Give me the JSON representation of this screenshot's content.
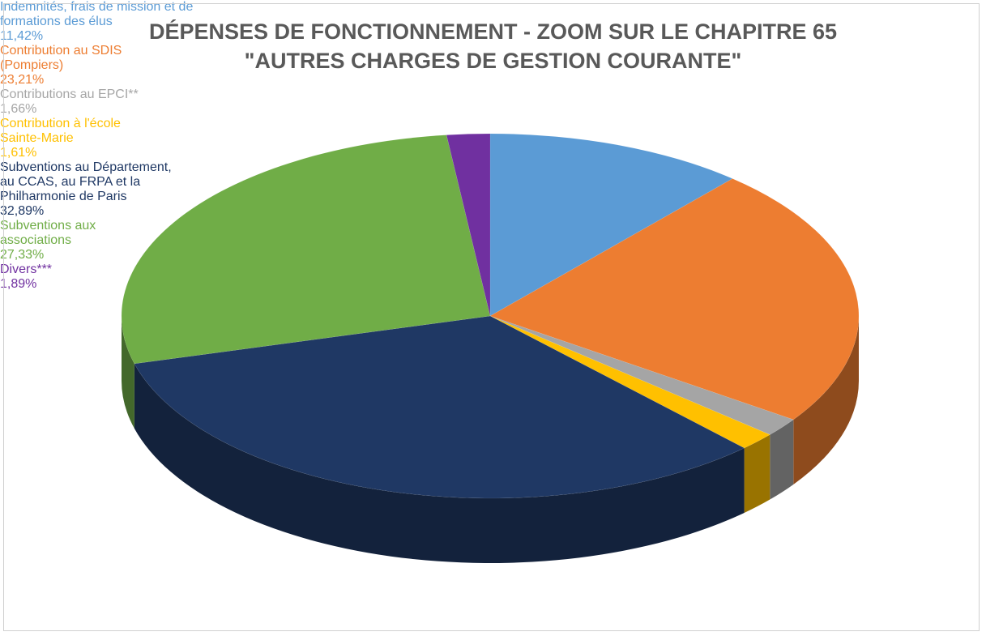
{
  "chart_data": {
    "type": "pie",
    "title": "DÉPENSES DE FONCTIONNEMENT - ZOOM SUR LE CHAPITRE 65",
    "subtitle": "\"AUTRES CHARGES DE GESTION COURANTE\"",
    "categories": [
      "Indemnités, frais de mission et de formations des élus",
      "Contribution au SDIS (Pompiers)",
      "Contributions au EPCI**",
      "Contribution à l'école Sainte-Marie",
      "Subventions au Département, au CCAS, au FRPA et la Philharmonie de Paris",
      "Subventions aux associations",
      "Divers***"
    ],
    "values": [
      11.42,
      23.21,
      1.66,
      1.61,
      32.89,
      27.33,
      1.89
    ],
    "value_labels": [
      "11,42%",
      "23,21%",
      "1,66%",
      "1,61%",
      "32,89%",
      "27,33%",
      "1,89%"
    ],
    "colors": [
      "#5b9bd5",
      "#ed7d31",
      "#a5a5a5",
      "#ffc000",
      "#1f3864",
      "#70ad47",
      "#7030a0"
    ]
  }
}
